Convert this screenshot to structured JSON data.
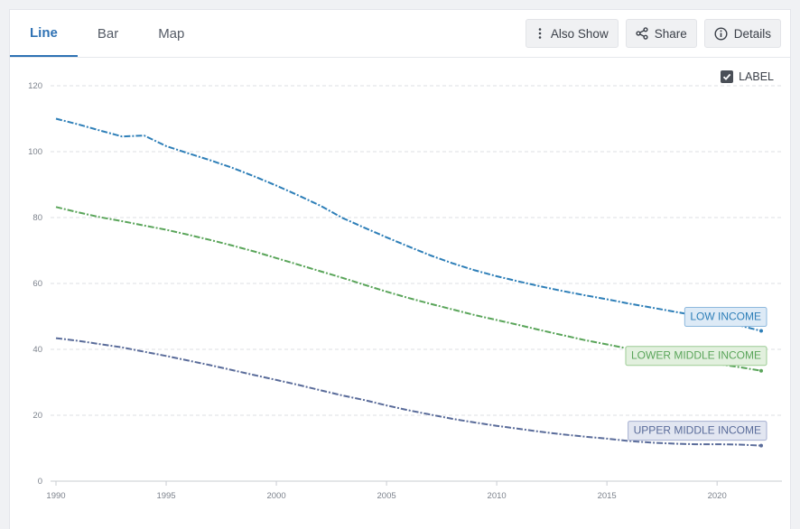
{
  "tabs": [
    {
      "label": "Line",
      "active": true
    },
    {
      "label": "Bar",
      "active": false
    },
    {
      "label": "Map",
      "active": false
    }
  ],
  "toolbar": {
    "also_show": "Also Show",
    "share": "Share",
    "details": "Details"
  },
  "label_toggle": {
    "label": "LABEL",
    "checked": true
  },
  "colors": {
    "accent": "#2f72b4",
    "low_income": "#2e7fb8",
    "lower_middle_income": "#5aa55a",
    "upper_middle_income": "#5a6c9a",
    "grid": "#dddfe3"
  },
  "chart_data": {
    "type": "line",
    "title": "",
    "xlabel": "",
    "ylabel": "",
    "xlim": [
      1990,
      2022
    ],
    "ylim": [
      0,
      120
    ],
    "x_ticks": [
      1990,
      1995,
      2000,
      2005,
      2010,
      2015,
      2020
    ],
    "y_ticks": [
      0,
      20,
      40,
      60,
      80,
      100,
      120
    ],
    "grid": true,
    "x": [
      1990,
      1991,
      1992,
      1993,
      1994,
      1995,
      1996,
      1997,
      1998,
      1999,
      2000,
      2001,
      2002,
      2003,
      2004,
      2005,
      2006,
      2007,
      2008,
      2009,
      2010,
      2011,
      2012,
      2013,
      2014,
      2015,
      2016,
      2017,
      2018,
      2019,
      2020,
      2021,
      2022
    ],
    "series": [
      {
        "name": "LOW INCOME",
        "color": "#2e7fb8",
        "label_bg": "#ddeaf6",
        "label_border": "#8db8dd",
        "values": [
          110,
          108.3,
          106.4,
          104.6,
          104.9,
          101.7,
          99.5,
          97.4,
          95.1,
          92.5,
          89.7,
          86.7,
          83.6,
          79.9,
          76.9,
          74,
          71.2,
          68.5,
          66.1,
          64,
          62.2,
          60.6,
          59.1,
          57.7,
          56.4,
          55.2,
          53.9,
          52.7,
          51.5,
          50.3,
          49.1,
          47.3,
          45.6
        ]
      },
      {
        "name": "LOWER MIDDLE INCOME",
        "color": "#5aa55a",
        "label_bg": "#e2f0de",
        "label_border": "#9ccc94",
        "values": [
          83.2,
          81.6,
          80.1,
          78.9,
          77.6,
          76.3,
          74.8,
          73.2,
          71.5,
          69.7,
          67.7,
          65.7,
          63.7,
          61.7,
          59.6,
          57.5,
          55.6,
          53.8,
          52.1,
          50.4,
          48.9,
          47.4,
          45.8,
          44.3,
          42.8,
          41.5,
          40.2,
          39,
          37.8,
          36.6,
          35.6,
          34.6,
          33.5
        ]
      },
      {
        "name": "UPPER MIDDLE INCOME",
        "color": "#5a6c9a",
        "label_bg": "#e2e6f1",
        "label_border": "#a4aed0",
        "values": [
          43.4,
          42.6,
          41.6,
          40.6,
          39.3,
          38,
          36.6,
          35.2,
          33.7,
          32.2,
          30.7,
          29.2,
          27.6,
          26,
          24.6,
          23,
          21.5,
          20.2,
          18.9,
          17.8,
          16.8,
          15.9,
          15,
          14.2,
          13.5,
          12.9,
          12.2,
          11.7,
          11.4,
          11.2,
          11.2,
          11.1,
          10.8
        ]
      }
    ]
  }
}
